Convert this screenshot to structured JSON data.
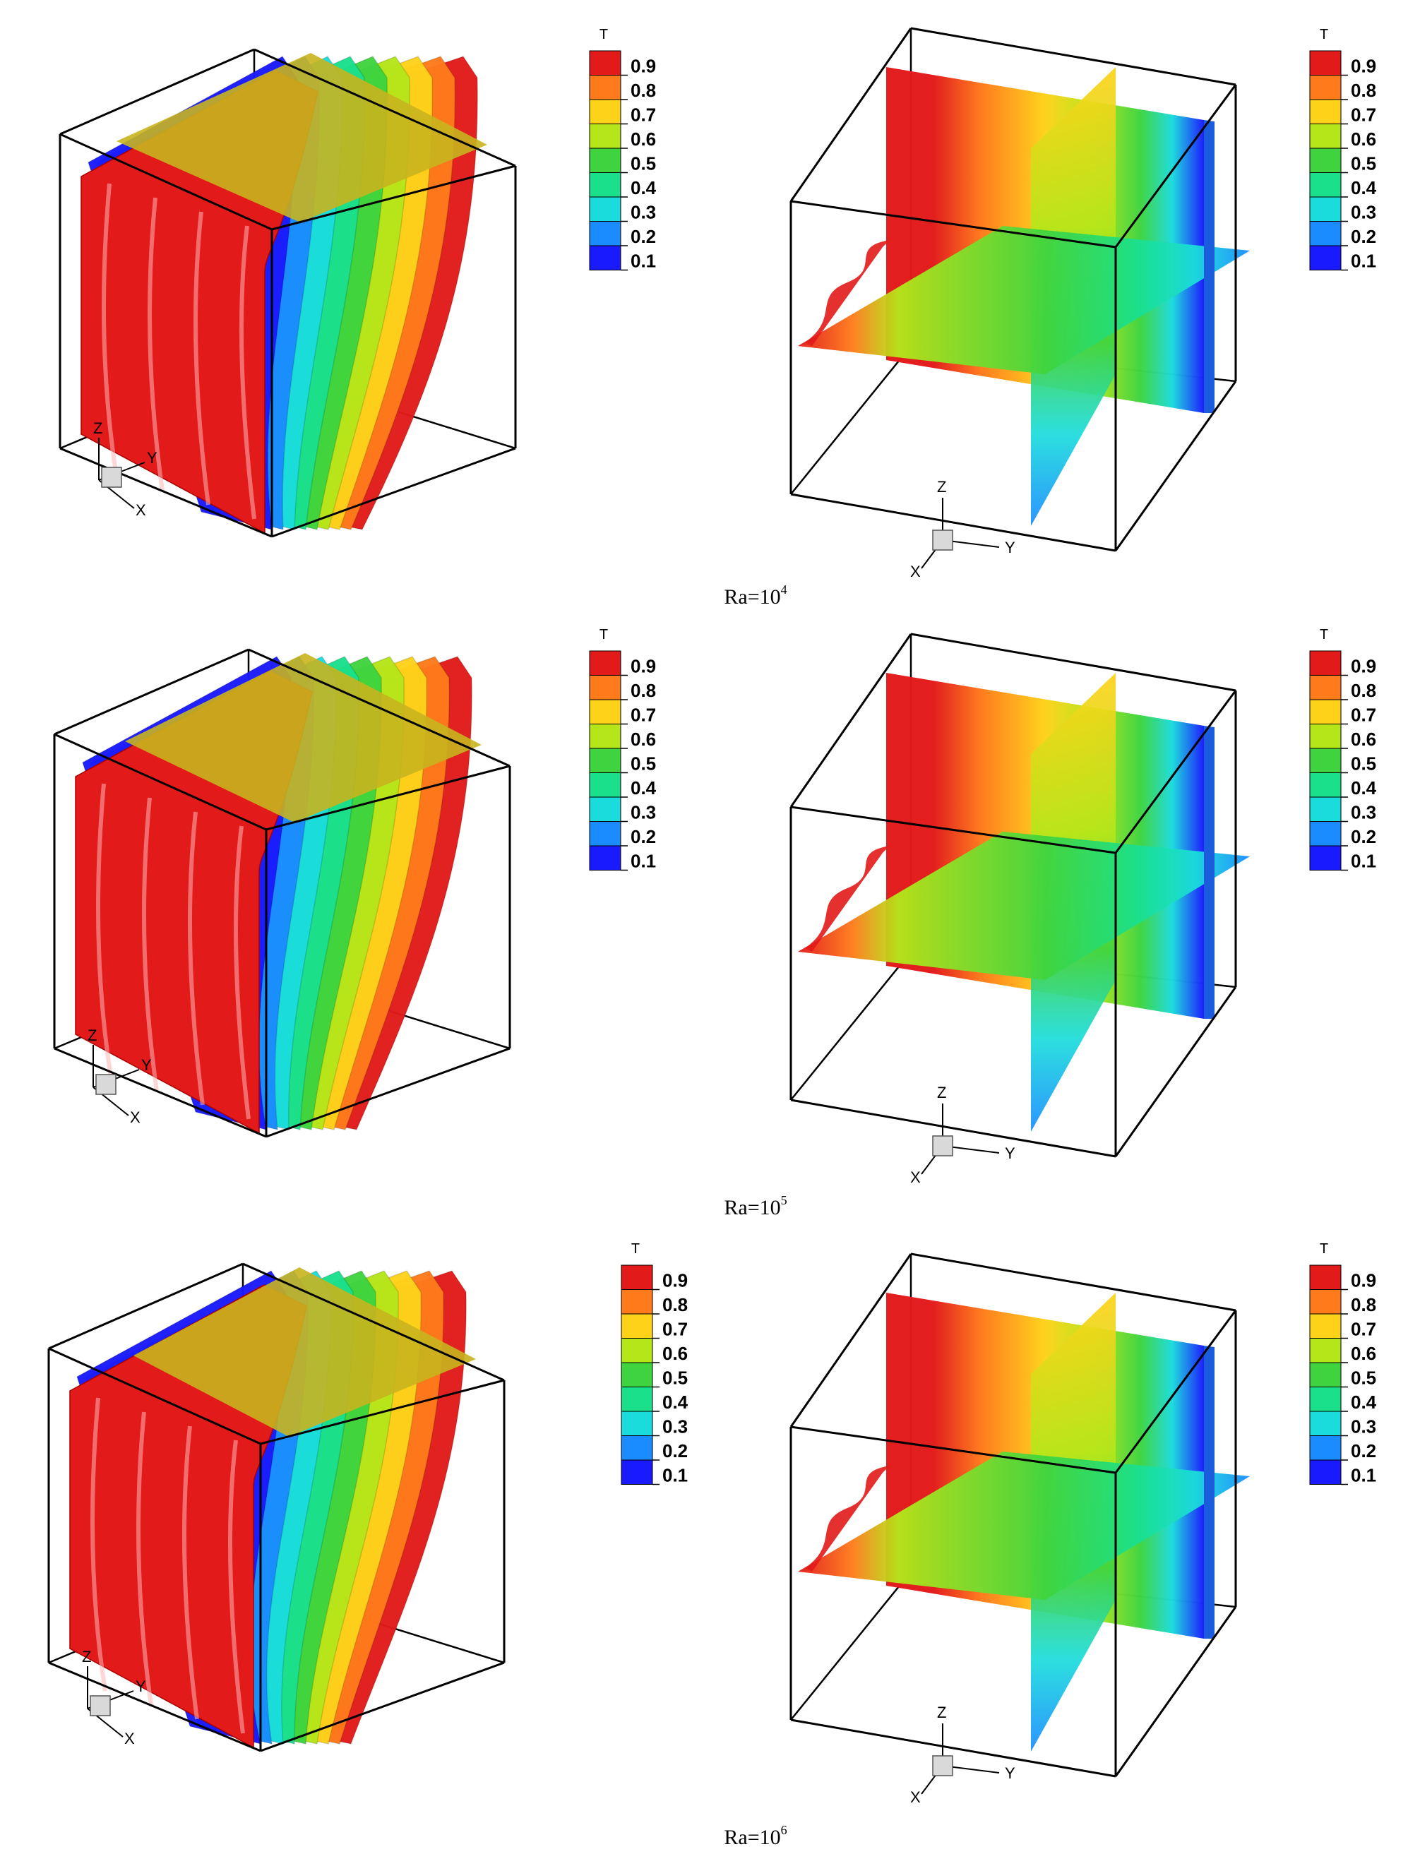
{
  "legend": {
    "title": "T",
    "levels": [
      "0.9",
      "0.8",
      "0.7",
      "0.6",
      "0.5",
      "0.4",
      "0.3",
      "0.2",
      "0.1"
    ],
    "colors": [
      "#e21a1a",
      "#ff7a1a",
      "#ffd21a",
      "#b5e61a",
      "#3fd43f",
      "#1ae08c",
      "#1adcdc",
      "#1a8cff",
      "#1a1aff"
    ]
  },
  "axis_letters": {
    "x": "X",
    "y": "Y",
    "z": "Z"
  },
  "rows": [
    {
      "caption_base": "Ra=10",
      "caption_exp": "4"
    },
    {
      "caption_base": "Ra=10",
      "caption_exp": "5"
    },
    {
      "caption_base": "Ra=10",
      "caption_exp": "6"
    }
  ],
  "colors": {
    "hot": "#e21a1a",
    "olive": "#c8b41e",
    "cold": "#1a5cdc",
    "frame": "#000000"
  }
}
